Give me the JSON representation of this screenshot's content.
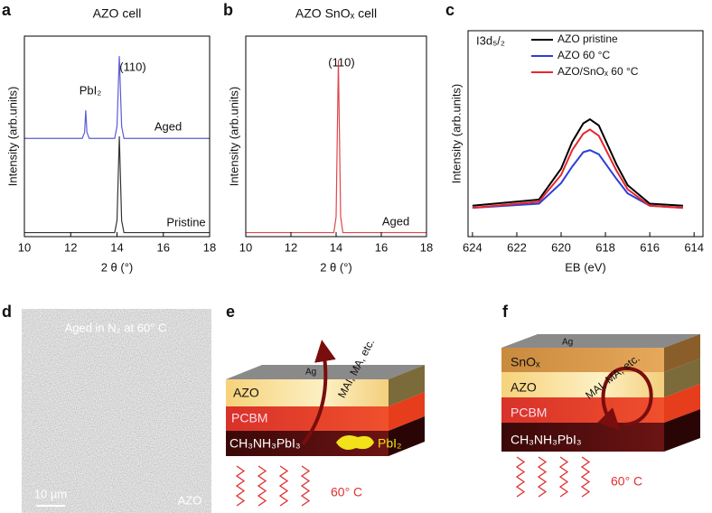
{
  "chart_data": [
    {
      "type": "line",
      "panel_label": "a",
      "title": "AZO cell",
      "x_label": "2 θ (°)",
      "y_label": "Intensity (arb.units)",
      "x": [
        10,
        12.5,
        12.6,
        12.65,
        12.7,
        12.8,
        13.9,
        14.0,
        14.1,
        14.2,
        14.3,
        18
      ],
      "series": [
        {
          "name": "Aged",
          "color": "#5b5bd6",
          "values": [
            49,
            49,
            52,
            63,
            52,
            49,
            49,
            55,
            90,
            55,
            49,
            49
          ]
        },
        {
          "name": "Pristine",
          "color": "#333333",
          "values": [
            2,
            2,
            2,
            2,
            2,
            2,
            2,
            8,
            50,
            8,
            2,
            2
          ]
        }
      ],
      "annotations": [
        "PbI₂",
        "(110)"
      ],
      "xlim": [
        10,
        18
      ],
      "ylim": [
        0,
        100
      ],
      "xticks": [
        10,
        12,
        14,
        16,
        18
      ]
    },
    {
      "type": "line",
      "panel_label": "b",
      "title": "AZO SnOₓ cell",
      "x_label": "2 θ (°)",
      "y_label": "Intensity (arb.units)",
      "x": [
        10,
        13.9,
        14.0,
        14.1,
        14.2,
        14.3,
        18
      ],
      "series": [
        {
          "name": "Aged",
          "color": "#e0474c",
          "values": [
            2,
            2,
            10,
            88,
            10,
            2,
            2
          ]
        }
      ],
      "annotations": [
        "(110)"
      ],
      "xlim": [
        10,
        18
      ],
      "ylim": [
        0,
        100
      ],
      "xticks": [
        10,
        12,
        14,
        16,
        18
      ]
    },
    {
      "type": "line",
      "panel_label": "c",
      "x_label": "EB (eV)",
      "y_label": "Intensity (arb.units)",
      "x": [
        624,
        621,
        620,
        619.5,
        619,
        618.7,
        618.3,
        617.5,
        617,
        616,
        614.5
      ],
      "series": [
        {
          "name": "AZO pristine",
          "color": "#000000",
          "values": [
            15,
            18,
            33,
            46,
            55,
            57,
            54,
            35,
            25,
            16,
            15
          ]
        },
        {
          "name": "AZO 60 °C",
          "color": "#2b3fd6",
          "values": [
            14,
            16,
            26,
            34,
            41,
            42,
            40,
            28,
            21,
            15,
            14
          ]
        },
        {
          "name": "AZO/SnOₓ 60 °C",
          "color": "#e8262b",
          "values": [
            14,
            17,
            30,
            42,
            50,
            52,
            49,
            32,
            23,
            15,
            14
          ]
        }
      ],
      "annotations": [
        "I3d₅/₂"
      ],
      "legend": "upper right",
      "xlim": [
        624.2,
        613.6
      ],
      "ylim": [
        0,
        100
      ],
      "xticks": [
        624,
        622,
        620,
        618,
        616,
        614
      ]
    }
  ],
  "sem_image": {
    "panel_label": "d",
    "caption": "Aged in N₂ at 60° C",
    "scale_bar": "10 μm",
    "label": "AZO"
  },
  "diagram_e": {
    "panel_label": "e",
    "layers": [
      "Ag",
      "AZO",
      "PCBM",
      "CH₃NH₃PbI₃"
    ],
    "product": "PbI₂",
    "migration": "MAI, MA, etc.",
    "heat": "60° C"
  },
  "diagram_f": {
    "panel_label": "f",
    "layers": [
      "Ag",
      "SnOₓ",
      "AZO",
      "PCBM",
      "CH₃NH₃PbI₃"
    ],
    "migration": "MAI, MA, etc.",
    "heat": "60° C"
  }
}
